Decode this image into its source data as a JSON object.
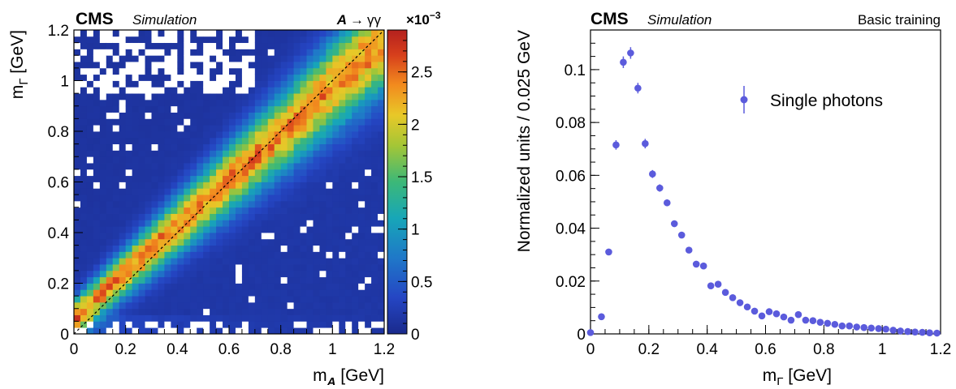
{
  "left_panel": {
    "experiment": "CMS",
    "label": "Simulation",
    "process": {
      "particle": "A",
      "arrow": "→",
      "products": "γγ"
    },
    "colorbar_multiplier": {
      "prefix": "×10",
      "exponent": "−3"
    },
    "xlabel": {
      "main": "m",
      "sub": "A",
      "unit": " [GeV]"
    },
    "ylabel": {
      "main": "m",
      "sub": "Γ",
      "unit": " [GeV]"
    },
    "x_ticks": [
      "0",
      "0.2",
      "0.4",
      "0.6",
      "0.8",
      "1",
      "1.2"
    ],
    "y_ticks": [
      "0",
      "0.2",
      "0.4",
      "0.6",
      "0.8",
      "1",
      "1.2"
    ],
    "colorbar_ticks": [
      "0",
      "0.5",
      "1",
      "1.5",
      "2",
      "2.5"
    ]
  },
  "right_panel": {
    "experiment": "CMS",
    "label": "Simulation",
    "corner_text": "Basic training",
    "legend": "Single photons",
    "xlabel": {
      "main": "m",
      "sub": "Γ",
      "unit": " [GeV]"
    },
    "ylabel": "Normalized units / 0.025 GeV",
    "x_ticks": [
      "0",
      "0.2",
      "0.4",
      "0.6",
      "0.8",
      "1",
      "1.2"
    ],
    "y_ticks": [
      "0",
      "0.02",
      "0.04",
      "0.06",
      "0.08",
      "0.1"
    ]
  },
  "chart_data": [
    {
      "type": "heatmap",
      "xlabel": "m_A [GeV]",
      "ylabel": "m_Γ [GeV]",
      "xlim": [
        0,
        1.2
      ],
      "ylim": [
        0,
        1.2
      ],
      "zlim": [
        0,
        0.0029
      ],
      "z_scale_label": "×10^-3",
      "colormap": "kBird (blue-green-yellow-red)",
      "low_color": "#1a2a8c",
      "high_color": "#b4211e",
      "reference_line": "diagonal m_Γ = m_A (dashed)"
    },
    {
      "type": "scatter",
      "series_name": "Single photons",
      "color": "#5b5bdc",
      "xlabel": "m_Γ [GeV]",
      "ylabel": "Normalized units / 0.025 GeV",
      "xlim": [
        0,
        1.2
      ],
      "ylim": [
        0,
        0.115
      ],
      "x": [
        0.0,
        0.0375,
        0.0625,
        0.0875,
        0.1125,
        0.1375,
        0.1625,
        0.1875,
        0.2125,
        0.2375,
        0.2625,
        0.2875,
        0.3125,
        0.3375,
        0.3625,
        0.3875,
        0.4125,
        0.4375,
        0.4625,
        0.4875,
        0.5125,
        0.5375,
        0.5625,
        0.5875,
        0.6125,
        0.6375,
        0.6625,
        0.6875,
        0.7125,
        0.7375,
        0.7625,
        0.7875,
        0.8125,
        0.8375,
        0.8625,
        0.8875,
        0.9125,
        0.9375,
        0.9625,
        0.9875,
        1.0125,
        1.0375,
        1.0625,
        1.0875,
        1.1125,
        1.1375,
        1.1625,
        1.1875
      ],
      "y": [
        0.0005,
        0.0065,
        0.031,
        0.0715,
        0.1028,
        0.1063,
        0.093,
        0.072,
        0.0605,
        0.0552,
        0.0496,
        0.0417,
        0.0374,
        0.0317,
        0.0264,
        0.0257,
        0.0182,
        0.0188,
        0.0157,
        0.0137,
        0.0118,
        0.0102,
        0.0086,
        0.0068,
        0.0084,
        0.0076,
        0.0064,
        0.0052,
        0.0073,
        0.0052,
        0.005,
        0.0044,
        0.004,
        0.0036,
        0.003,
        0.003,
        0.0026,
        0.0024,
        0.0022,
        0.002,
        0.0018,
        0.0014,
        0.0011,
        0.0009,
        0.0007,
        0.0006,
        0.0004,
        0.0003
      ],
      "yerr": [
        0.0003,
        0.0008,
        0.0012,
        0.0018,
        0.0022,
        0.0022,
        0.002,
        0.0018,
        0.0015,
        0.0014,
        0.0013,
        0.0012,
        0.0011,
        0.001,
        0.0009,
        0.0009,
        0.0008,
        0.0008,
        0.0007,
        0.0007,
        0.0006,
        0.0006,
        0.0005,
        0.0005,
        0.0005,
        0.0005,
        0.0005,
        0.0004,
        0.0005,
        0.0004,
        0.0004,
        0.0004,
        0.0004,
        0.0003,
        0.0003,
        0.0003,
        0.0003,
        0.0003,
        0.0003,
        0.0003,
        0.0003,
        0.0002,
        0.0002,
        0.0002,
        0.0002,
        0.0002,
        0.0002,
        0.0002
      ]
    }
  ]
}
